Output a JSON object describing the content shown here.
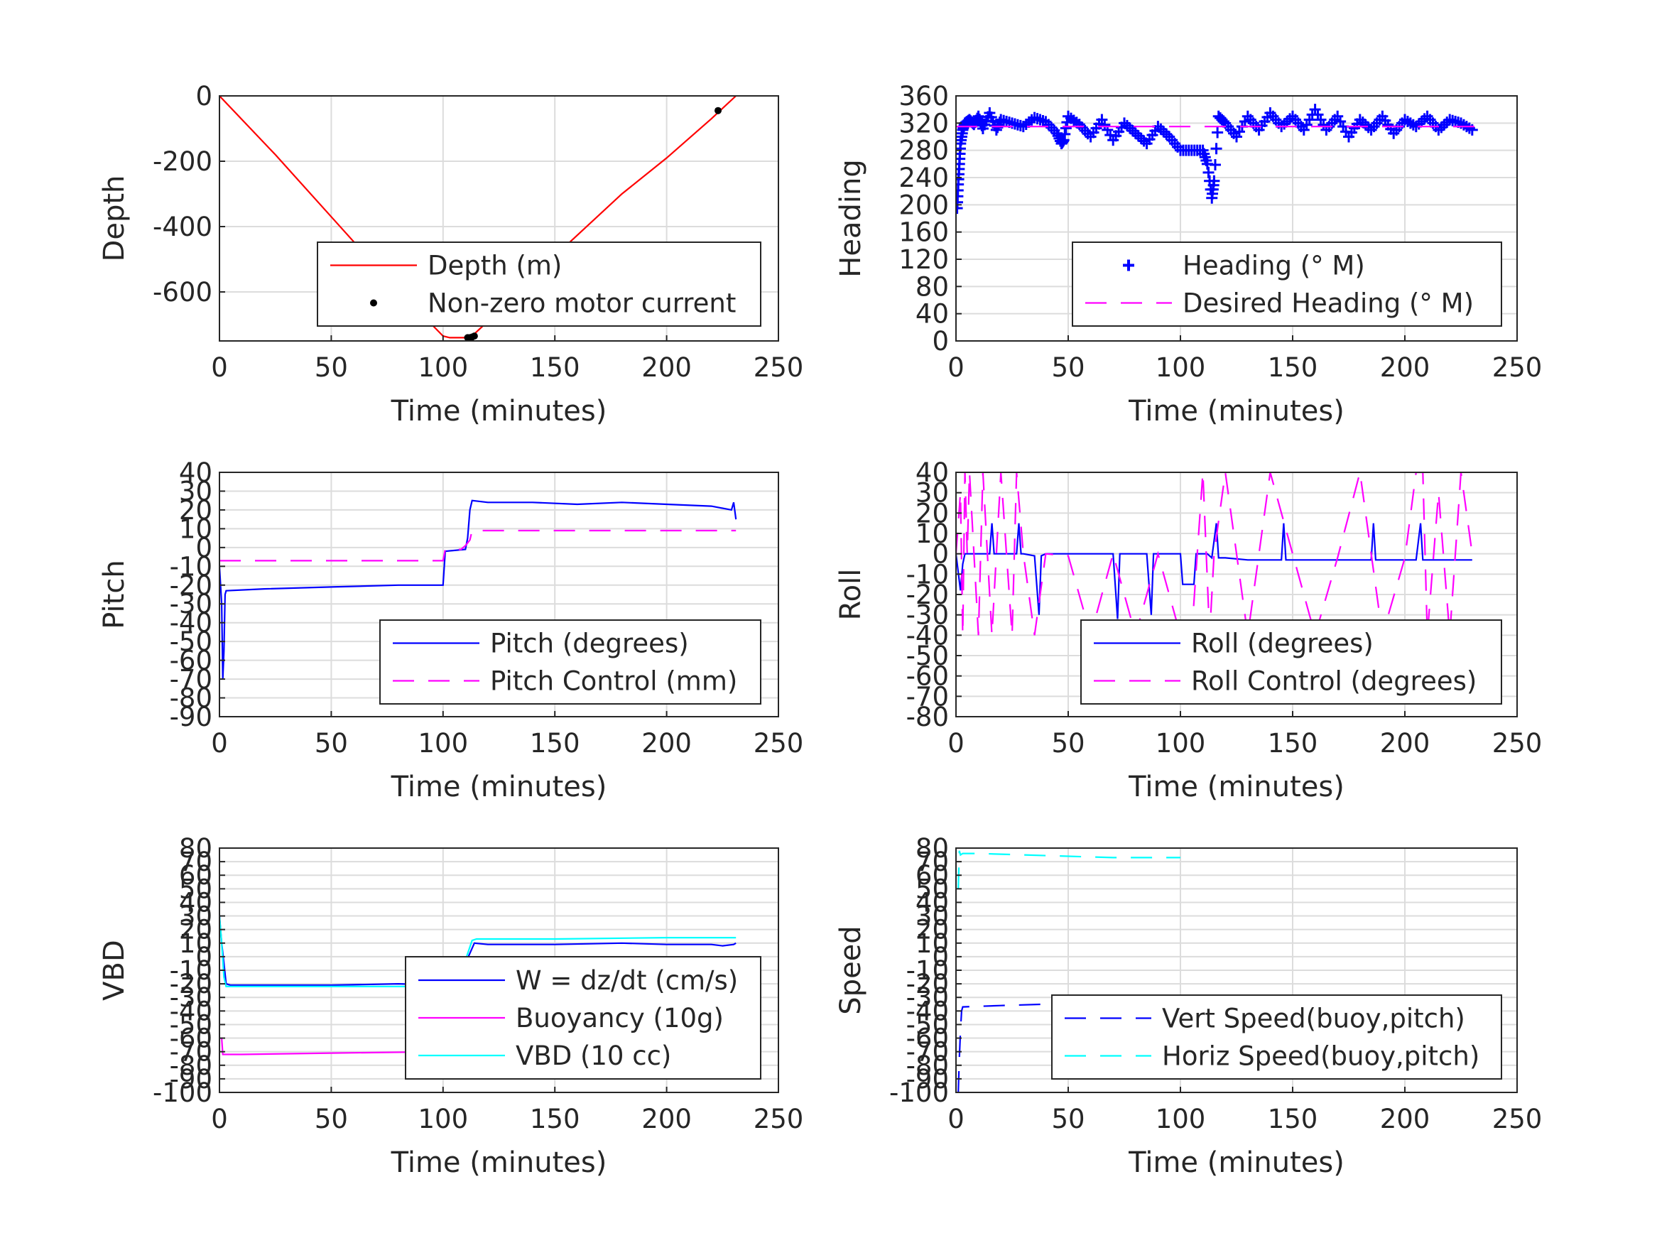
{
  "chart_data": [
    {
      "type": "line",
      "xlabel": "Time (minutes)",
      "ylabel": "Depth",
      "xlim": [
        0,
        250
      ],
      "ylim": [
        -750,
        0
      ],
      "xticks": [
        0,
        50,
        100,
        150,
        200,
        250
      ],
      "yticks": [
        0,
        -200,
        -400,
        -600
      ],
      "ytick_labels": [
        "0",
        "-200",
        "-400",
        "-600"
      ],
      "grid": true,
      "legend_position": "bottom-right",
      "series": [
        {
          "name": "Depth (m)",
          "style": "solid",
          "marker": "none",
          "color": "#ff0000",
          "x": [
            0,
            25,
            50,
            75,
            100,
            103,
            110,
            113,
            120,
            150,
            180,
            200,
            220,
            231
          ],
          "y": [
            0,
            -180,
            -370,
            -560,
            -735,
            -740,
            -740,
            -735,
            -690,
            -490,
            -300,
            -190,
            -70,
            0
          ]
        },
        {
          "name": "Non-zero motor current",
          "style": "none",
          "marker": "dot",
          "color": "#000000",
          "x": [
            111,
            112,
            113,
            114,
            223
          ],
          "y": [
            -740,
            -740,
            -738,
            -735,
            -45
          ]
        }
      ]
    },
    {
      "type": "scatter",
      "xlabel": "Time (minutes)",
      "ylabel": "Heading",
      "xlim": [
        0,
        250
      ],
      "ylim": [
        0,
        360
      ],
      "xticks": [
        0,
        50,
        100,
        150,
        200,
        250
      ],
      "yticks": [
        0,
        40,
        80,
        120,
        160,
        200,
        240,
        280,
        320,
        360
      ],
      "ytick_labels": [
        "0",
        "40",
        "80",
        "120",
        "160",
        "200",
        "240",
        "280",
        "320",
        "360"
      ],
      "grid": true,
      "legend_position": "bottom-right",
      "series": [
        {
          "name": "Heading (° M)",
          "style": "none",
          "marker": "plus",
          "color": "#0000ff",
          "x": [
            0.5,
            1,
            1.5,
            2,
            3,
            4,
            6,
            8,
            10,
            12,
            15,
            18,
            20,
            25,
            30,
            35,
            40,
            45,
            47,
            48,
            50,
            55,
            60,
            65,
            70,
            75,
            80,
            85,
            90,
            95,
            100,
            105,
            110,
            112,
            114,
            115,
            117,
            120,
            125,
            130,
            135,
            140,
            145,
            150,
            155,
            160,
            165,
            170,
            175,
            180,
            185,
            190,
            195,
            200,
            205,
            210,
            215,
            220,
            225,
            230
          ],
          "y": [
            195,
            230,
            260,
            290,
            310,
            320,
            325,
            318,
            330,
            312,
            335,
            310,
            325,
            320,
            315,
            328,
            322,
            305,
            290,
            295,
            330,
            318,
            300,
            325,
            295,
            320,
            305,
            290,
            315,
            300,
            280,
            280,
            280,
            260,
            210,
            235,
            330,
            320,
            300,
            330,
            310,
            335,
            315,
            330,
            310,
            340,
            310,
            330,
            300,
            325,
            310,
            330,
            305,
            325,
            315,
            330,
            310,
            325,
            320,
            310
          ]
        },
        {
          "name": "Desired Heading (° M)",
          "style": "dashed",
          "marker": "none",
          "color": "#ff00ff",
          "x": [
            0,
            231
          ],
          "y": [
            315,
            315
          ]
        }
      ]
    },
    {
      "type": "line",
      "xlabel": "Time (minutes)",
      "ylabel": "Pitch",
      "xlim": [
        0,
        250
      ],
      "ylim": [
        -90,
        40
      ],
      "xticks": [
        0,
        50,
        100,
        150,
        200,
        250
      ],
      "yticks": [
        40,
        30,
        20,
        10,
        0,
        -10,
        -20,
        -30,
        -40,
        -50,
        -60,
        -70,
        -80,
        -90
      ],
      "ytick_labels": [
        "40",
        "30",
        "20",
        "10",
        "0",
        "-10",
        "-20",
        "-30",
        "-40",
        "-50",
        "-60",
        "-70",
        "-80",
        "-90"
      ],
      "grid": true,
      "legend_position": "bottom-right",
      "series": [
        {
          "name": "Pitch (degrees)",
          "style": "solid",
          "marker": "none",
          "color": "#0000ff",
          "x": [
            0,
            1,
            1.5,
            2,
            2.5,
            3,
            20,
            50,
            80,
            100,
            101,
            110,
            111,
            112,
            113,
            120,
            140,
            160,
            180,
            200,
            220,
            229,
            230,
            231
          ],
          "y": [
            -10,
            -30,
            -70,
            -55,
            -25,
            -23,
            -22,
            -21,
            -20,
            -20,
            -2,
            -1,
            5,
            20,
            25,
            24,
            24,
            23,
            24,
            23,
            22,
            20,
            24,
            15
          ]
        },
        {
          "name": "Pitch Control (mm)",
          "style": "dashed",
          "marker": "none",
          "color": "#ff00ff",
          "x": [
            0,
            100,
            101,
            108,
            110,
            112,
            113,
            150,
            200,
            231
          ],
          "y": [
            -7,
            -7,
            -1,
            -1,
            1,
            4,
            9,
            9,
            9,
            9
          ]
        }
      ]
    },
    {
      "type": "line",
      "xlabel": "Time (minutes)",
      "ylabel": "Roll",
      "xlim": [
        0,
        250
      ],
      "ylim": [
        -80,
        40
      ],
      "xticks": [
        0,
        50,
        100,
        150,
        200,
        250
      ],
      "yticks": [
        40,
        30,
        20,
        10,
        0,
        -10,
        -20,
        -30,
        -40,
        -50,
        -60,
        -70,
        -80
      ],
      "ytick_labels": [
        "40",
        "30",
        "20",
        "10",
        "0",
        "-10",
        "-20",
        "-30",
        "-40",
        "-50",
        "-60",
        "-70",
        "-80"
      ],
      "grid": true,
      "legend_position": "bottom-right",
      "series": [
        {
          "name": "Roll (degrees)",
          "style": "solid",
          "marker": "none",
          "color": "#0000ff",
          "x": [
            0,
            2,
            3,
            4,
            5,
            6,
            15,
            16,
            17,
            18,
            20,
            27,
            28,
            29,
            30,
            35,
            37,
            38,
            40,
            50,
            60,
            70,
            72,
            73,
            80,
            85,
            87,
            88,
            95,
            100,
            101,
            106,
            107,
            112,
            114,
            116,
            117,
            120,
            130,
            145,
            146,
            147,
            150,
            160,
            170,
            180,
            185,
            186,
            187,
            190,
            200,
            205,
            207,
            208,
            210,
            220,
            228,
            230
          ],
          "y": [
            0,
            -18,
            -5,
            0,
            0,
            0,
            0,
            15,
            0,
            0,
            0,
            0,
            15,
            0,
            0,
            -1,
            -30,
            -1,
            0,
            0,
            0,
            0,
            -32,
            0,
            0,
            0,
            -30,
            0,
            0,
            0,
            -15,
            -15,
            0,
            0,
            -2,
            15,
            -2,
            -2,
            -3,
            -3,
            15,
            -3,
            -3,
            -3,
            -3,
            -3,
            -3,
            15,
            -3,
            -3,
            -3,
            -3,
            15,
            -3,
            -3,
            -3,
            -3,
            -3
          ]
        },
        {
          "name": "Roll Control (degrees)",
          "style": "dashed",
          "marker": "none",
          "color": "#ff00ff",
          "x": [
            0,
            2,
            3,
            4,
            5,
            6,
            10,
            12,
            14,
            16,
            20,
            25,
            27,
            30,
            35,
            40,
            50,
            60,
            70,
            80,
            90,
            100,
            105,
            110,
            113,
            115,
            120,
            130,
            140,
            150,
            160,
            170,
            180,
            190,
            200,
            205,
            208,
            210,
            215,
            220,
            225,
            230
          ],
          "y": [
            0,
            30,
            -40,
            40,
            0,
            40,
            -40,
            40,
            0,
            -40,
            40,
            -40,
            40,
            0,
            -40,
            0,
            -1,
            -40,
            0,
            -40,
            0,
            -40,
            -40,
            40,
            -40,
            0,
            40,
            -40,
            40,
            0,
            -40,
            -2,
            40,
            -40,
            -2,
            40,
            40,
            -40,
            30,
            -40,
            40,
            0
          ]
        }
      ]
    },
    {
      "type": "line",
      "xlabel": "Time (minutes)",
      "ylabel": "VBD",
      "xlim": [
        0,
        250
      ],
      "ylim": [
        -100,
        80
      ],
      "xticks": [
        0,
        50,
        100,
        150,
        200,
        250
      ],
      "yticks": [
        80,
        70,
        60,
        50,
        40,
        30,
        20,
        10,
        0,
        -10,
        -20,
        -30,
        -40,
        -50,
        -60,
        -70,
        -80,
        -90,
        -100
      ],
      "ytick_labels": [
        "80",
        "70",
        "60",
        "50",
        "40",
        "30",
        "20",
        "10",
        "0",
        "-10",
        "-20",
        "-30",
        "-40",
        "-50",
        "-60",
        "-70",
        "-80",
        "-90",
        "-100"
      ],
      "grid": true,
      "legend_position": "bottom-right",
      "series": [
        {
          "name": "W = dz/dt (cm/s)",
          "style": "solid",
          "marker": "none",
          "color": "#0000ff",
          "x": [
            0,
            1,
            2,
            3,
            5,
            20,
            50,
            80,
            100,
            105,
            110,
            114,
            120,
            150,
            180,
            200,
            220,
            225,
            230,
            231
          ],
          "y": [
            30,
            10,
            -5,
            -20,
            -21,
            -21,
            -21,
            -20,
            -21,
            -20,
            -5,
            10,
            9,
            9,
            10,
            9,
            9,
            8,
            9,
            10
          ]
        },
        {
          "name": "Buoyancy (10g)",
          "style": "solid",
          "marker": "none",
          "color": "#ff00ff",
          "x": [
            0,
            1,
            1.5,
            2,
            10,
            50,
            99
          ],
          "y": [
            -60,
            -60,
            -72,
            -72,
            -72,
            -71,
            -70
          ]
        },
        {
          "name": "VBD (10 cc)",
          "style": "solid",
          "marker": "none",
          "color": "#00ffff",
          "x": [
            0,
            1,
            2,
            3,
            5,
            20,
            50,
            80,
            100,
            106,
            113,
            115,
            150,
            200,
            231
          ],
          "y": [
            30,
            10,
            -15,
            -22,
            -22,
            -22,
            -22,
            -22,
            -22,
            -22,
            12,
            13,
            13,
            14,
            14
          ]
        }
      ]
    },
    {
      "type": "line",
      "xlabel": "Time (minutes)",
      "ylabel": "Speed",
      "xlim": [
        0,
        250
      ],
      "ylim": [
        -100,
        80
      ],
      "xticks": [
        0,
        50,
        100,
        150,
        200,
        250
      ],
      "yticks": [
        80,
        70,
        60,
        50,
        40,
        30,
        20,
        10,
        0,
        -10,
        -20,
        -30,
        -40,
        -50,
        -60,
        -70,
        -80,
        -90,
        -100
      ],
      "ytick_labels": [
        "80",
        "70",
        "60",
        "50",
        "40",
        "30",
        "20",
        "10",
        "0",
        "-10",
        "-20",
        "-30",
        "-40",
        "-50",
        "-60",
        "-70",
        "-80",
        "-90",
        "-100"
      ],
      "grid": true,
      "legend_position": "bottom-right",
      "series": [
        {
          "name": "Vert Speed(buoy,pitch)",
          "style": "dashed",
          "marker": "none",
          "color": "#0000ff",
          "x": [
            1,
            1.5,
            2,
            2.5,
            3,
            20,
            40,
            60,
            80,
            100
          ],
          "y": [
            -100,
            -75,
            -55,
            -40,
            -37,
            -36,
            -35,
            -34,
            -34,
            -33
          ]
        },
        {
          "name": "Horiz Speed(buoy,pitch)",
          "style": "dashed",
          "marker": "none",
          "color": "#00ffff",
          "x": [
            1,
            1.5,
            2,
            3,
            10,
            30,
            50,
            70,
            90,
            100
          ],
          "y": [
            50,
            78,
            75,
            76,
            76,
            75,
            74,
            73,
            73,
            73
          ]
        }
      ]
    }
  ]
}
